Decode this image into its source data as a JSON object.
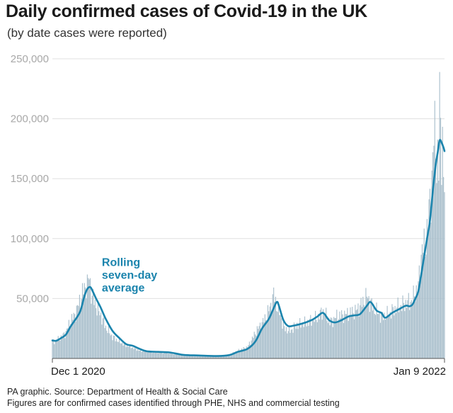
{
  "title": "Daily confirmed cases of Covid-19 in the UK",
  "subtitle": "(by date cases were reported)",
  "footer": {
    "source": "PA graphic. Source: Department of Health & Social Care",
    "note": "Figures are for confirmed cases identified through PHE, NHS and commercial testing"
  },
  "colors": {
    "bars": "#a9bfcc",
    "average_line": "#1b84ad",
    "grid": "#e0e0e0",
    "tick_text": "#a8a8a8"
  },
  "chart_data": {
    "type": "bar",
    "ylim": [
      0,
      250000
    ],
    "y_ticks": [
      50000,
      100000,
      150000,
      200000,
      250000
    ],
    "y_tick_labels": [
      "50,000",
      "100,000",
      "150,000",
      "200,000",
      "250,000"
    ],
    "x_range": [
      "2020-12-01",
      "2022-01-09"
    ],
    "x_tick_labels": [
      {
        "date": "2020-12-01",
        "label": "Dec 1 2020"
      },
      {
        "date": "2022-01-09",
        "label": "Jan 9 2022"
      }
    ],
    "annotation": {
      "lines": [
        "Rolling",
        "seven-day",
        "average"
      ],
      "date": "2021-01-21",
      "value": 77000
    },
    "series": [
      {
        "name": "Daily confirmed cases",
        "kind": "bars",
        "values_by_date": [
          [
            "2020-12-01",
            14000
          ],
          [
            "2020-12-05",
            15000
          ],
          [
            "2020-12-10",
            17500
          ],
          [
            "2020-12-15",
            22000
          ],
          [
            "2020-12-20",
            32000
          ],
          [
            "2020-12-24",
            36000
          ],
          [
            "2020-12-28",
            45000
          ],
          [
            "2021-01-01",
            55000
          ],
          [
            "2021-01-04",
            60000
          ],
          [
            "2021-01-06",
            62000
          ],
          [
            "2021-01-08",
            68000
          ],
          [
            "2021-01-10",
            55000
          ],
          [
            "2021-01-13",
            48000
          ],
          [
            "2021-01-16",
            42000
          ],
          [
            "2021-01-20",
            36000
          ],
          [
            "2021-01-25",
            26000
          ],
          [
            "2021-02-01",
            18000
          ],
          [
            "2021-02-08",
            14000
          ],
          [
            "2021-02-15",
            11000
          ],
          [
            "2021-02-22",
            9000
          ],
          [
            "2021-03-01",
            6500
          ],
          [
            "2021-03-15",
            5500
          ],
          [
            "2021-04-01",
            4500
          ],
          [
            "2021-04-15",
            2800
          ],
          [
            "2021-05-01",
            2200
          ],
          [
            "2021-05-15",
            2100
          ],
          [
            "2021-05-31",
            2600
          ],
          [
            "2021-06-10",
            6500
          ],
          [
            "2021-06-20",
            9500
          ],
          [
            "2021-06-30",
            24000
          ],
          [
            "2021-07-08",
            33000
          ],
          [
            "2021-07-15",
            46000
          ],
          [
            "2021-07-17",
            54000
          ],
          [
            "2021-07-19",
            47000
          ],
          [
            "2021-07-23",
            38000
          ],
          [
            "2021-07-28",
            25000
          ],
          [
            "2021-08-03",
            23000
          ],
          [
            "2021-08-10",
            28000
          ],
          [
            "2021-08-20",
            30000
          ],
          [
            "2021-08-31",
            34000
          ],
          [
            "2021-09-06",
            40000
          ],
          [
            "2021-09-13",
            30000
          ],
          [
            "2021-09-20",
            35000
          ],
          [
            "2021-09-30",
            37000
          ],
          [
            "2021-10-10",
            40000
          ],
          [
            "2021-10-18",
            48000
          ],
          [
            "2021-10-21",
            52000
          ],
          [
            "2021-10-28",
            42000
          ],
          [
            "2021-11-05",
            35000
          ],
          [
            "2021-11-12",
            37000
          ],
          [
            "2021-11-20",
            42000
          ],
          [
            "2021-11-30",
            46000
          ],
          [
            "2021-12-06",
            48000
          ],
          [
            "2021-12-10",
            55000
          ],
          [
            "2021-12-13",
            60000
          ],
          [
            "2021-12-15",
            78000
          ],
          [
            "2021-12-17",
            93000
          ],
          [
            "2021-12-20",
            92000
          ],
          [
            "2021-12-22",
            106000
          ],
          [
            "2021-12-24",
            122000
          ],
          [
            "2021-12-27",
            150000
          ],
          [
            "2021-12-29",
            183000
          ],
          [
            "2021-12-31",
            190000
          ],
          [
            "2022-01-01",
            162000
          ],
          [
            "2022-01-02",
            163000
          ],
          [
            "2022-01-03",
            157000
          ],
          [
            "2022-01-04",
            219000
          ],
          [
            "2022-01-05",
            195000
          ],
          [
            "2022-01-06",
            180000
          ],
          [
            "2022-01-07",
            178000
          ],
          [
            "2022-01-08",
            146000
          ],
          [
            "2022-01-09",
            142000
          ]
        ]
      },
      {
        "name": "Rolling seven-day average",
        "kind": "line",
        "values_by_date": [
          [
            "2020-12-01",
            15000
          ],
          [
            "2020-12-05",
            14800
          ],
          [
            "2020-12-10",
            17000
          ],
          [
            "2020-12-15",
            20000
          ],
          [
            "2020-12-20",
            27000
          ],
          [
            "2020-12-26",
            34000
          ],
          [
            "2020-12-30",
            40000
          ],
          [
            "2021-01-03",
            52000
          ],
          [
            "2021-01-06",
            58000
          ],
          [
            "2021-01-09",
            59500
          ],
          [
            "2021-01-11",
            57000
          ],
          [
            "2021-01-15",
            50000
          ],
          [
            "2021-01-20",
            42000
          ],
          [
            "2021-01-25",
            33000
          ],
          [
            "2021-02-01",
            23000
          ],
          [
            "2021-02-08",
            17000
          ],
          [
            "2021-02-15",
            12000
          ],
          [
            "2021-02-22",
            10500
          ],
          [
            "2021-03-01",
            8000
          ],
          [
            "2021-03-08",
            6000
          ],
          [
            "2021-03-20",
            5500
          ],
          [
            "2021-04-01",
            5000
          ],
          [
            "2021-04-15",
            3000
          ],
          [
            "2021-05-01",
            2500
          ],
          [
            "2021-05-20",
            2000
          ],
          [
            "2021-06-01",
            2800
          ],
          [
            "2021-06-10",
            5500
          ],
          [
            "2021-06-20",
            8000
          ],
          [
            "2021-06-28",
            14000
          ],
          [
            "2021-07-05",
            25000
          ],
          [
            "2021-07-12",
            33000
          ],
          [
            "2021-07-17",
            42000
          ],
          [
            "2021-07-20",
            47000
          ],
          [
            "2021-07-22",
            45000
          ],
          [
            "2021-07-27",
            32000
          ],
          [
            "2021-08-01",
            27000
          ],
          [
            "2021-08-07",
            27500
          ],
          [
            "2021-08-15",
            29000
          ],
          [
            "2021-08-25",
            32000
          ],
          [
            "2021-08-31",
            35000
          ],
          [
            "2021-09-06",
            38000
          ],
          [
            "2021-09-12",
            32000
          ],
          [
            "2021-09-18",
            30000
          ],
          [
            "2021-09-25",
            32000
          ],
          [
            "2021-10-02",
            35000
          ],
          [
            "2021-10-08",
            36000
          ],
          [
            "2021-10-14",
            37000
          ],
          [
            "2021-10-21",
            44000
          ],
          [
            "2021-10-25",
            47000
          ],
          [
            "2021-10-31",
            40000
          ],
          [
            "2021-11-05",
            38000
          ],
          [
            "2021-11-09",
            34000
          ],
          [
            "2021-11-16",
            38000
          ],
          [
            "2021-11-23",
            41000
          ],
          [
            "2021-11-30",
            44000
          ],
          [
            "2021-12-04",
            43500
          ],
          [
            "2021-12-07",
            45000
          ],
          [
            "2021-12-10",
            50000
          ],
          [
            "2021-12-13",
            56000
          ],
          [
            "2021-12-16",
            70000
          ],
          [
            "2021-12-19",
            85000
          ],
          [
            "2021-12-22",
            100000
          ],
          [
            "2021-12-25",
            115000
          ],
          [
            "2021-12-28",
            140000
          ],
          [
            "2021-12-31",
            162000
          ],
          [
            "2022-01-02",
            172000
          ],
          [
            "2022-01-04",
            182000
          ],
          [
            "2022-01-06",
            180000
          ],
          [
            "2022-01-08",
            176000
          ],
          [
            "2022-01-09",
            173000
          ]
        ]
      }
    ]
  }
}
